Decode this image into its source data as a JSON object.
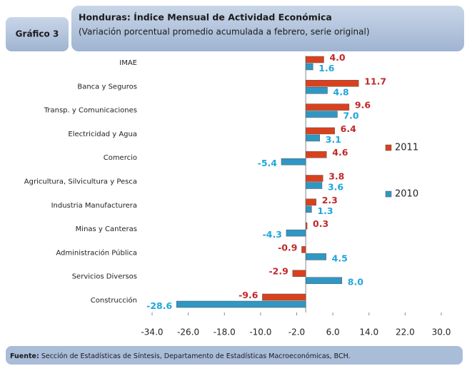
{
  "chart_data": {
    "type": "hbar",
    "figure_label": "Gráfico 3",
    "title": "Honduras: Índice Mensual de Actividad Económica",
    "subtitle": "(Variación porcentual promedio acumulada a febrero, serie original)",
    "categories": [
      "IMAE",
      "Banca y Seguros",
      "Transp. y Comunicaciones",
      "Electricidad y Agua",
      "Comercio",
      "Agricultura, Silvicultura y Pesca",
      "Industria Manufacturera",
      "Minas y Canteras",
      "Administración Pública",
      "Servicios Diversos",
      "Construcción"
    ],
    "series": [
      {
        "name": "2011",
        "color": "#d9411e",
        "label_color": "#c0282a",
        "values": [
          4.0,
          11.7,
          9.6,
          6.4,
          4.6,
          3.8,
          2.3,
          0.3,
          -0.9,
          -2.9,
          -9.6
        ],
        "value_labels": [
          "4.0",
          "11.7",
          "9.6",
          "6.4",
          "4.6",
          "3.8",
          "2.3",
          "0.3",
          "-0.9",
          "-2.9",
          "-9.6"
        ]
      },
      {
        "name": "2010",
        "color": "#2f97c4",
        "label_color": "#1fa6dc",
        "values": [
          1.6,
          4.8,
          7.0,
          3.1,
          -5.4,
          3.6,
          1.3,
          -4.3,
          4.5,
          8.0,
          -28.6
        ],
        "value_labels": [
          "1.6",
          "4.8",
          "7.0",
          "3.1",
          "-5.4",
          "3.6",
          "1.3",
          "-4.3",
          "4.5",
          "8.0",
          "-28.6"
        ]
      }
    ],
    "xlim": [
      -34,
      30
    ],
    "xticks": [
      {
        "value": -34,
        "label": "-34.0"
      },
      {
        "value": -26,
        "label": "-26.0"
      },
      {
        "value": -18,
        "label": "-18.0"
      },
      {
        "value": -10,
        "label": "-10.0"
      },
      {
        "value": -2,
        "label": "-2.0"
      },
      {
        "value": 6,
        "label": "6.0"
      },
      {
        "value": 14,
        "label": "14.0"
      },
      {
        "value": 22,
        "label": "22.0"
      },
      {
        "value": 30,
        "label": "30.0"
      }
    ],
    "grid": false,
    "legend": "right",
    "footer": {
      "label": "Fuente:",
      "text": "Sección de Estadísticas de Síntesis, Departamento de Estadísticas Macroeconómicas, BCH."
    }
  }
}
